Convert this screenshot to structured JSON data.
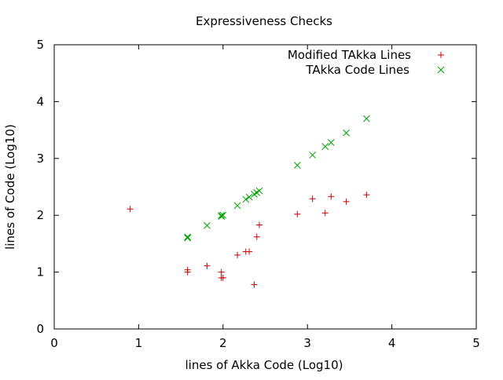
{
  "chart_data": {
    "type": "scatter",
    "title": "Expressiveness Checks",
    "xlabel": "lines of Akka Code (Log10)",
    "ylabel": "lines of Code (Log10)",
    "xlim": [
      0,
      5
    ],
    "ylim": [
      0,
      5
    ],
    "xticks": [
      "0",
      "1",
      "2",
      "3",
      "4",
      "5"
    ],
    "yticks": [
      "0",
      "1",
      "2",
      "3",
      "4",
      "5"
    ],
    "grid": false,
    "legend_position": "top-right",
    "series": [
      {
        "name": "Modified TAkka Lines",
        "marker": "plus",
        "color": "#cc0000",
        "points": [
          [
            0.9,
            2.11
          ],
          [
            1.58,
            1.0
          ],
          [
            1.58,
            1.04
          ],
          [
            1.81,
            1.11
          ],
          [
            1.98,
            1.0
          ],
          [
            1.98,
            0.9
          ],
          [
            2.0,
            0.9
          ],
          [
            2.17,
            1.3
          ],
          [
            2.27,
            1.36
          ],
          [
            2.31,
            1.36
          ],
          [
            2.37,
            0.78
          ],
          [
            2.4,
            1.62
          ],
          [
            2.43,
            1.83
          ],
          [
            2.88,
            2.02
          ],
          [
            3.06,
            2.29
          ],
          [
            3.21,
            2.04
          ],
          [
            3.28,
            2.33
          ],
          [
            3.46,
            2.24
          ],
          [
            3.7,
            2.36
          ]
        ]
      },
      {
        "name": "TAkka Code Lines",
        "marker": "cross",
        "color": "#00a000",
        "points": [
          [
            1.58,
            1.6
          ],
          [
            1.58,
            1.62
          ],
          [
            1.81,
            1.82
          ],
          [
            1.98,
            1.98
          ],
          [
            1.98,
            2.0
          ],
          [
            2.0,
            2.0
          ],
          [
            2.17,
            2.17
          ],
          [
            2.27,
            2.28
          ],
          [
            2.31,
            2.32
          ],
          [
            2.37,
            2.37
          ],
          [
            2.4,
            2.4
          ],
          [
            2.43,
            2.43
          ],
          [
            2.88,
            2.88
          ],
          [
            3.06,
            3.06
          ],
          [
            3.21,
            3.21
          ],
          [
            3.28,
            3.28
          ],
          [
            3.46,
            3.45
          ],
          [
            3.7,
            3.7
          ]
        ]
      }
    ]
  }
}
